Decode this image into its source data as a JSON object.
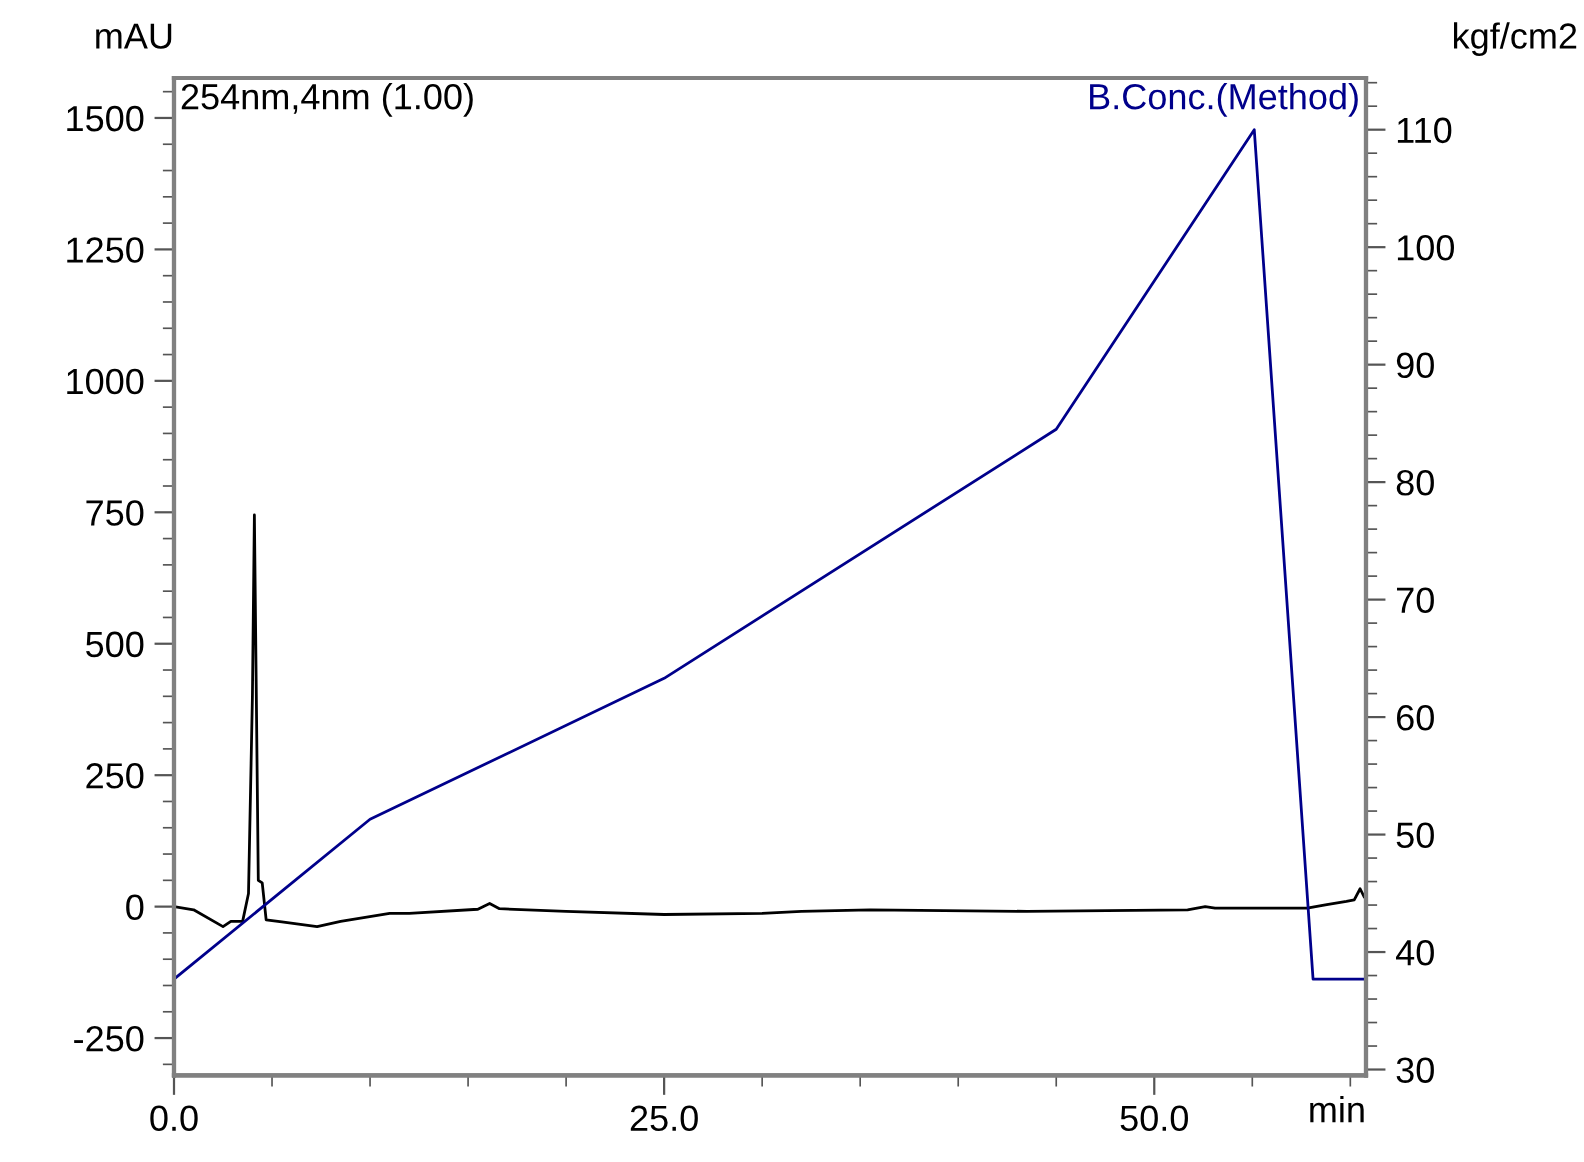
{
  "chart_data": {
    "type": "line",
    "ylabel": "mAU",
    "y2label": "kgf/cm2",
    "xlabel": "min",
    "xlim": [
      0,
      60.8
    ],
    "ylim": [
      -321,
      1576
    ],
    "y2lim": [
      29.5,
      114.4
    ],
    "xticks": [
      {
        "value": 0,
        "label": "0.0"
      },
      {
        "value": 25,
        "label": "25.0"
      },
      {
        "value": 50,
        "label": "50.0"
      }
    ],
    "yticks": [
      -250,
      0,
      250,
      500,
      750,
      1000,
      1250,
      1500
    ],
    "y2ticks": [
      30,
      40,
      50,
      60,
      70,
      80,
      90,
      100,
      110
    ],
    "grid": false,
    "legend": false,
    "marker": "none",
    "line_style": "solid",
    "series": [
      {
        "name": "254nm,4nm (1.00)",
        "color": "#000000",
        "x": [
          0,
          1,
          2.5,
          2.9,
          3.5,
          3.8,
          4.0,
          4.1,
          4.3,
          4.5,
          4.7,
          5.5,
          7.3,
          8.5,
          11,
          12,
          15.5,
          16.1,
          16.6,
          20,
          25,
          30,
          32,
          35.5,
          43.5,
          51.7,
          52.6,
          53.1,
          57.8,
          58.8,
          59.8,
          60.2,
          60.5,
          60.7
        ],
        "values": [
          0,
          -6,
          -38,
          -28,
          -28,
          25,
          400,
          745,
          50,
          45,
          -25,
          -29,
          -38,
          -28,
          -13,
          -13,
          -5,
          6,
          -4,
          -9,
          -15,
          -13,
          -9,
          -6,
          -9,
          -6,
          0,
          -3,
          -3,
          4,
          10,
          13,
          34,
          19
        ]
      },
      {
        "name": "B.Conc.(Method)",
        "color": "#00008b",
        "axis": "y2",
        "x": [
          0,
          0,
          10,
          25,
          45,
          55.1,
          58.1,
          60.8
        ],
        "values": [
          29.5,
          37.7,
          51.3,
          63.3,
          84.5,
          110,
          37.7,
          37.7
        ]
      }
    ]
  }
}
